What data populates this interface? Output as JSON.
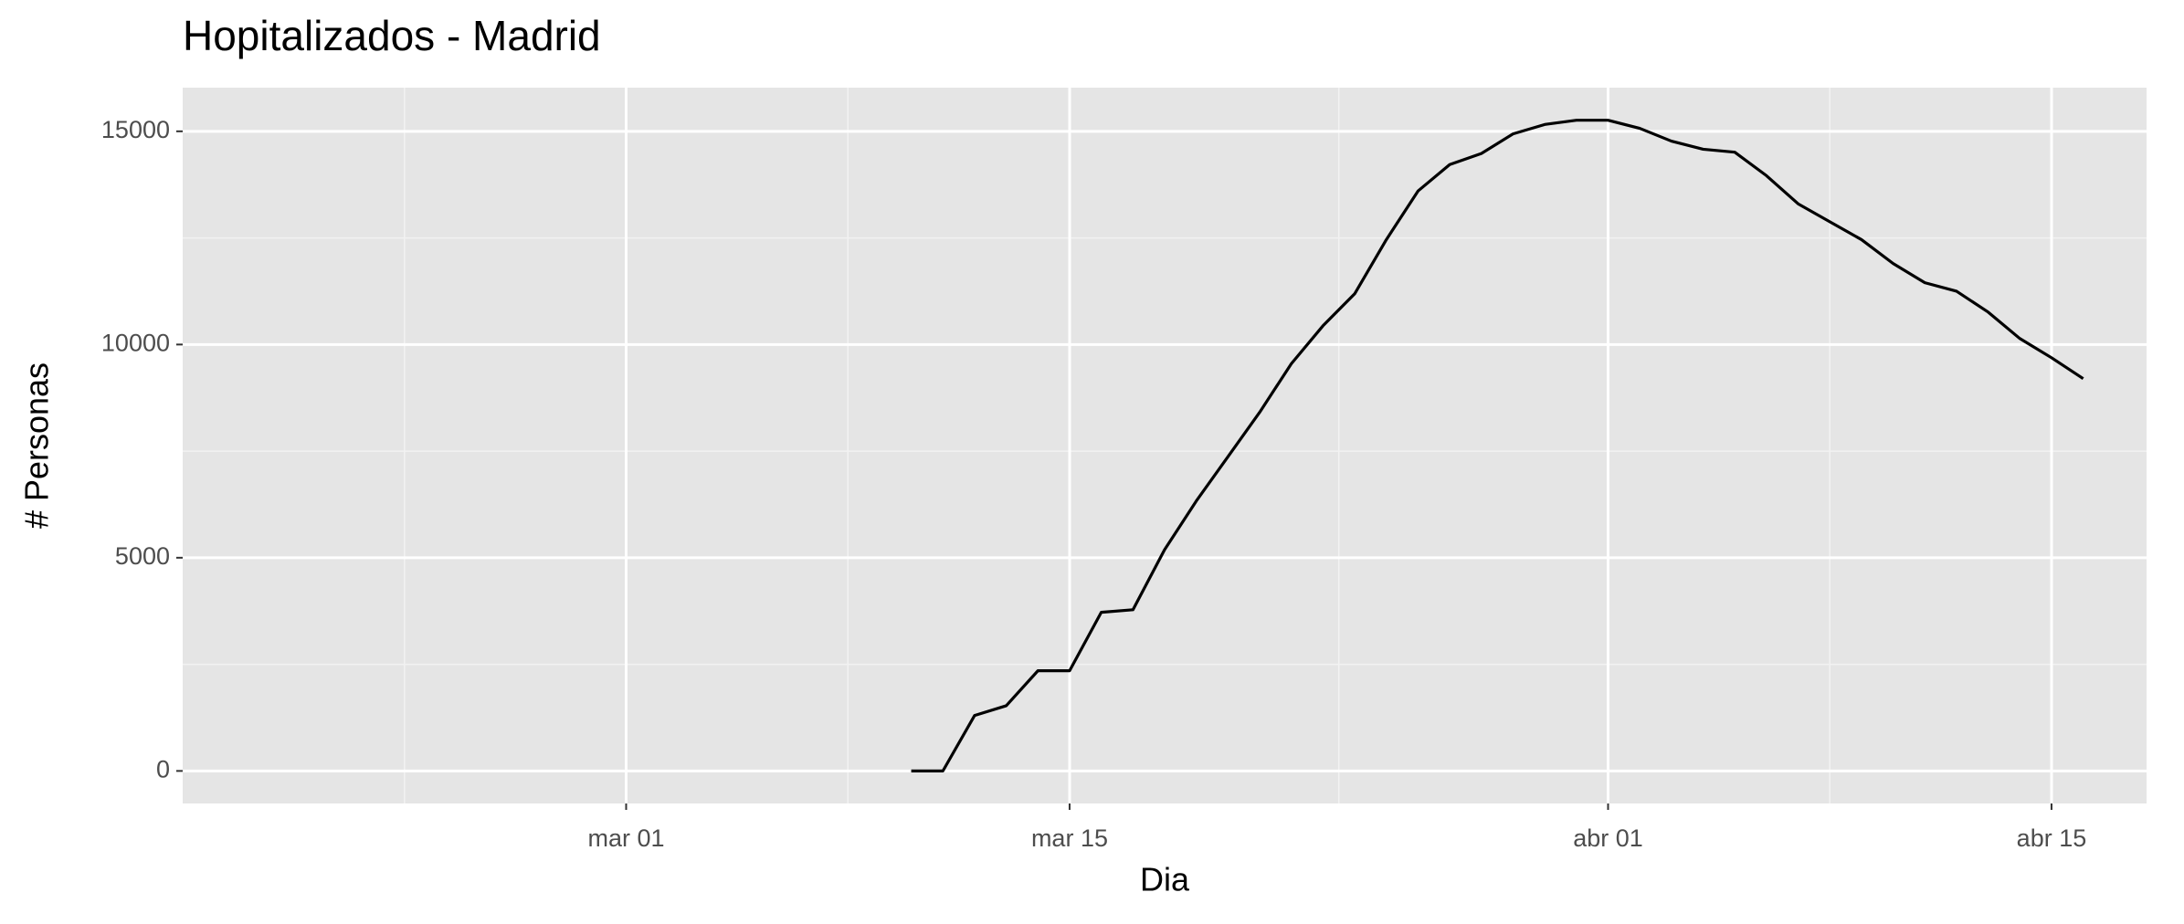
{
  "chart_data": {
    "type": "line",
    "title": "Hopitalizados - Madrid",
    "x_label": "Dia",
    "y_label": "# Personas",
    "x": [
      "03-10",
      "03-11",
      "03-12",
      "03-13",
      "03-14",
      "03-15",
      "03-16",
      "03-17",
      "03-18",
      "03-19",
      "03-20",
      "03-21",
      "03-22",
      "03-23",
      "03-24",
      "03-25",
      "03-26",
      "03-27",
      "03-28",
      "03-29",
      "03-30",
      "03-31",
      "04-01",
      "04-02",
      "04-03",
      "04-04",
      "04-05",
      "04-06",
      "04-07",
      "04-08",
      "04-09",
      "04-10",
      "04-11",
      "04-12",
      "04-13",
      "04-14",
      "04-15",
      "04-16"
    ],
    "series": [
      {
        "color": "#000000",
        "values": [
          0,
          0,
          1300,
          1530,
          2350,
          2350,
          3720,
          3780,
          5190,
          6330,
          7370,
          8410,
          9550,
          10440,
          11190,
          12460,
          13600,
          14220,
          14480,
          14940,
          15160,
          15260,
          15260,
          15070,
          14770,
          14580,
          14510,
          13960,
          13300,
          12880,
          12460,
          11900,
          11450,
          11250,
          10760,
          10140,
          9690,
          9200
        ]
      }
    ],
    "xlim": [
      "02-16",
      "04-18"
    ],
    "xticks": [
      {
        "value": "03-01",
        "label": "mar 01"
      },
      {
        "value": "03-15",
        "label": "mar 15"
      },
      {
        "value": "04-01",
        "label": "abr 01"
      },
      {
        "value": "04-15",
        "label": "abr 15"
      }
    ],
    "ylim": [
      -763,
      16024
    ],
    "yticks": [
      0,
      5000,
      10000,
      15000
    ],
    "grid": true
  }
}
